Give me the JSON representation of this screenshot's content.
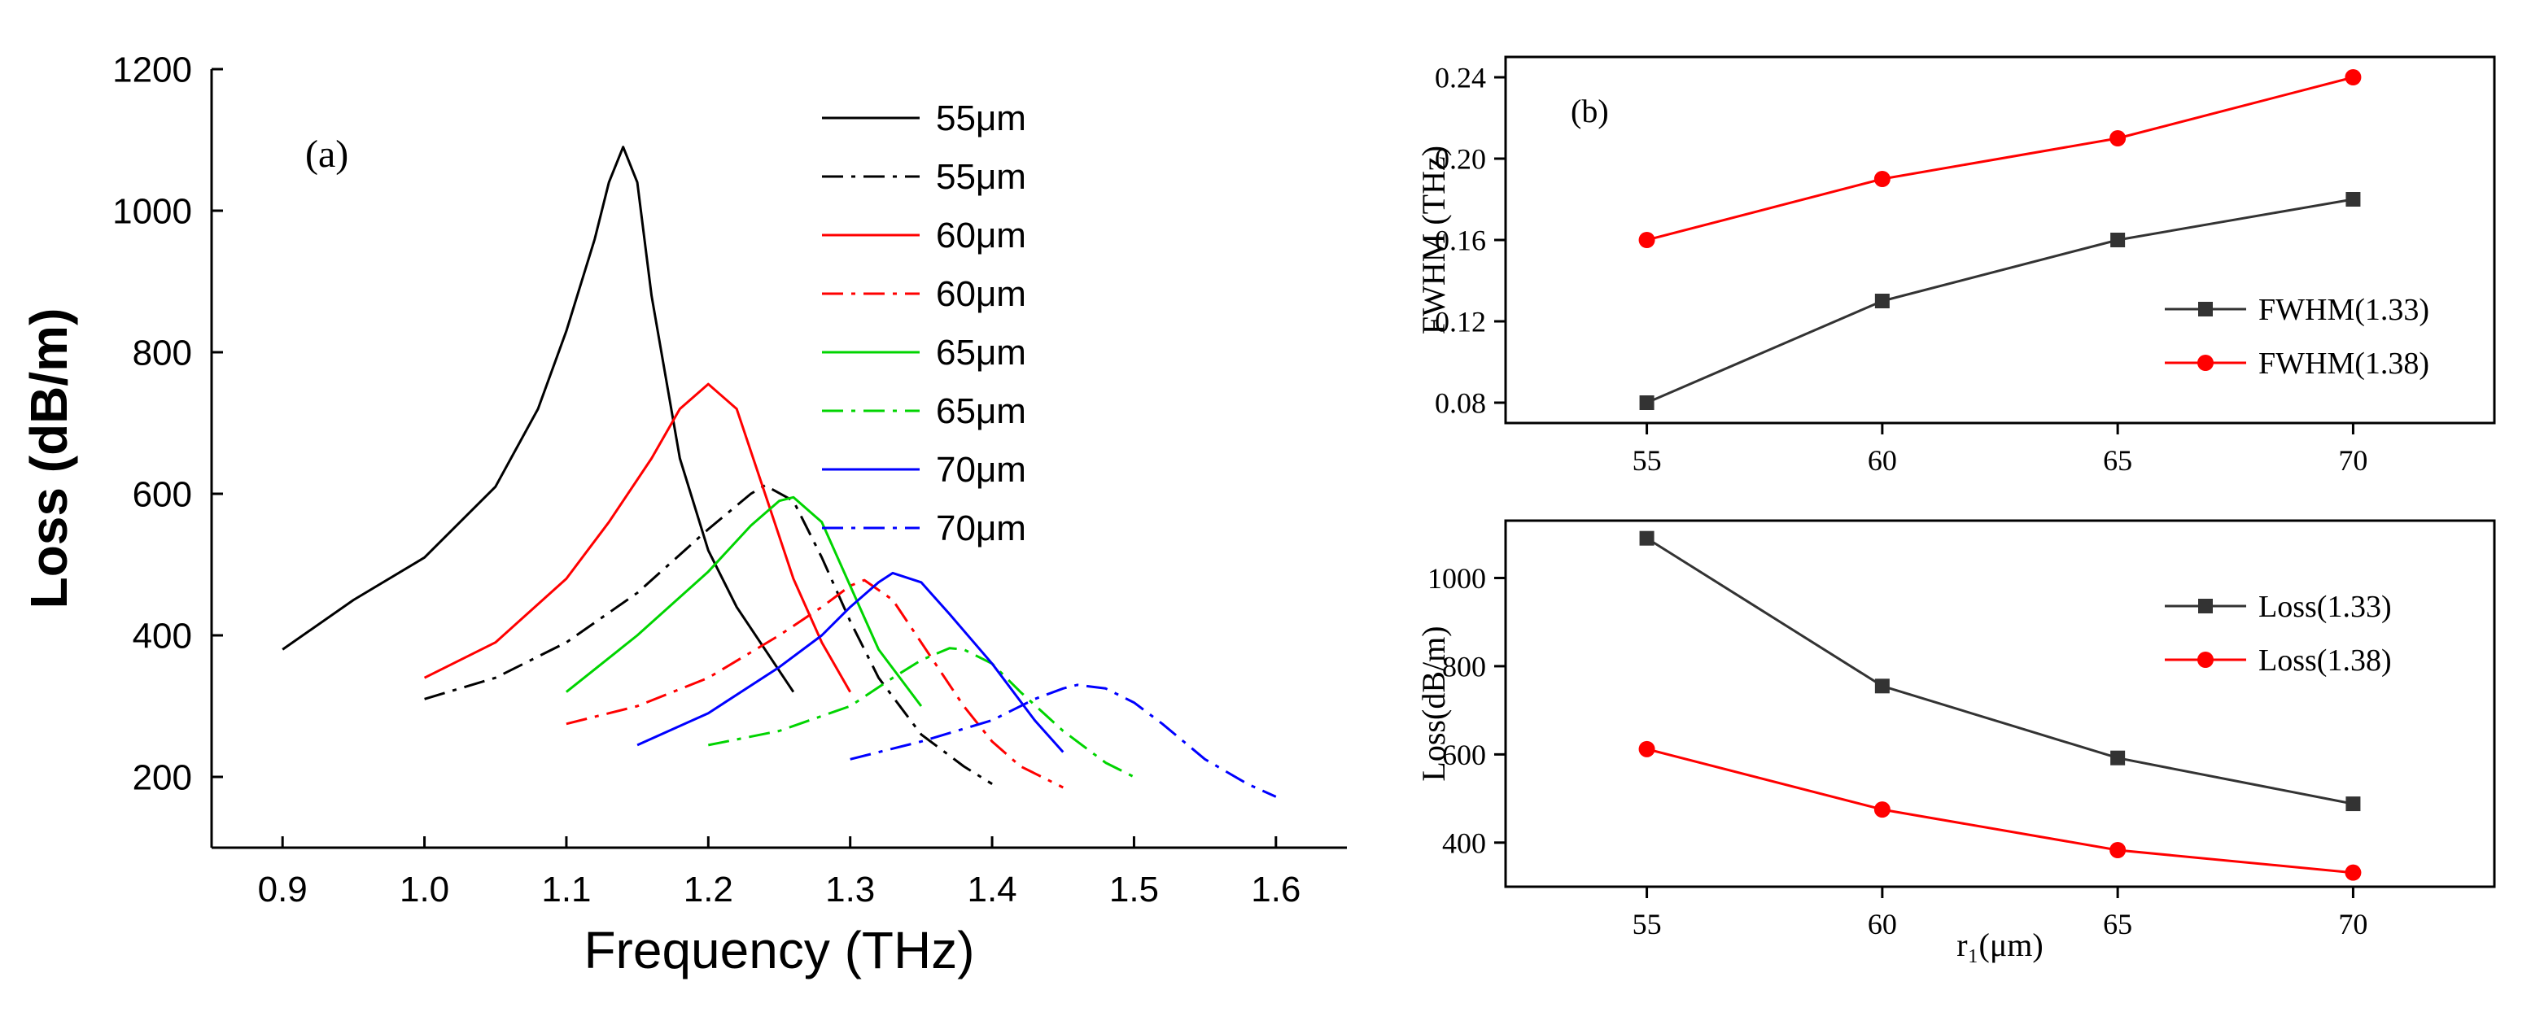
{
  "colors": {
    "black": "#000000",
    "red": "#ff0000",
    "green": "#00d400",
    "blue": "#0000ff",
    "gray": "#333333"
  },
  "chart_data": [
    {
      "id": "a",
      "type": "line",
      "panel_label": "(a)",
      "title": "",
      "xlabel": "Frequency (THz)",
      "ylabel": "Loss (dB/m)",
      "xlim": [
        0.85,
        1.65
      ],
      "ylim": [
        100,
        1200
      ],
      "xticks": [
        0.9,
        1.0,
        1.1,
        1.2,
        1.3,
        1.4,
        1.5,
        1.6
      ],
      "xtick_labels": [
        "0.9",
        "1.0",
        "1.1",
        "1.2",
        "1.3",
        "1.4",
        "1.5",
        "1.6"
      ],
      "yticks": [
        200,
        400,
        600,
        800,
        1000,
        1200
      ],
      "ytick_labels": [
        "200",
        "400",
        "600",
        "800",
        "1000",
        "1200"
      ],
      "legend_position": "top-right",
      "series": [
        {
          "name": "55μm",
          "color": "#000000",
          "dash": "solid",
          "x": [
            0.9,
            0.95,
            1.0,
            1.05,
            1.08,
            1.1,
            1.12,
            1.13,
            1.14,
            1.15,
            1.16,
            1.18,
            1.2,
            1.22,
            1.24,
            1.26
          ],
          "y": [
            380,
            450,
            510,
            610,
            720,
            830,
            960,
            1040,
            1090,
            1040,
            880,
            650,
            520,
            440,
            380,
            320
          ]
        },
        {
          "name": "55μm",
          "color": "#000000",
          "dash": "dashdot",
          "x": [
            1.0,
            1.05,
            1.1,
            1.15,
            1.2,
            1.23,
            1.24,
            1.26,
            1.28,
            1.3,
            1.32,
            1.35,
            1.38,
            1.4
          ],
          "y": [
            310,
            340,
            390,
            460,
            550,
            600,
            612,
            590,
            510,
            420,
            340,
            260,
            215,
            190
          ]
        },
        {
          "name": "60μm",
          "color": "#ff0000",
          "dash": "solid",
          "x": [
            1.0,
            1.05,
            1.1,
            1.13,
            1.16,
            1.18,
            1.2,
            1.22,
            1.24,
            1.26,
            1.28,
            1.3
          ],
          "y": [
            340,
            390,
            480,
            560,
            650,
            720,
            755,
            720,
            600,
            480,
            390,
            320
          ]
        },
        {
          "name": "60μm",
          "color": "#ff0000",
          "dash": "dashdot",
          "x": [
            1.1,
            1.15,
            1.2,
            1.25,
            1.28,
            1.3,
            1.31,
            1.33,
            1.35,
            1.38,
            1.4,
            1.42,
            1.45
          ],
          "y": [
            275,
            300,
            340,
            400,
            440,
            470,
            478,
            450,
            390,
            300,
            250,
            215,
            185
          ]
        },
        {
          "name": "65μm",
          "color": "#00d400",
          "dash": "solid",
          "x": [
            1.1,
            1.15,
            1.2,
            1.23,
            1.25,
            1.26,
            1.28,
            1.3,
            1.32,
            1.35
          ],
          "y": [
            320,
            400,
            490,
            555,
            590,
            595,
            560,
            470,
            380,
            300
          ]
        },
        {
          "name": "65μm",
          "color": "#00d400",
          "dash": "dashdot",
          "x": [
            1.2,
            1.25,
            1.3,
            1.33,
            1.35,
            1.37,
            1.38,
            1.4,
            1.42,
            1.45,
            1.48,
            1.5
          ],
          "y": [
            245,
            265,
            300,
            340,
            365,
            382,
            380,
            360,
            320,
            265,
            220,
            200
          ]
        },
        {
          "name": "70μm",
          "color": "#0000ff",
          "dash": "solid",
          "x": [
            1.15,
            1.2,
            1.25,
            1.28,
            1.3,
            1.32,
            1.33,
            1.35,
            1.37,
            1.4,
            1.43,
            1.45
          ],
          "y": [
            245,
            290,
            355,
            400,
            440,
            475,
            488,
            475,
            430,
            360,
            280,
            235
          ]
        },
        {
          "name": "70μm",
          "color": "#0000ff",
          "dash": "dashdot",
          "x": [
            1.3,
            1.35,
            1.4,
            1.43,
            1.45,
            1.46,
            1.48,
            1.5,
            1.52,
            1.55,
            1.58,
            1.6
          ],
          "y": [
            225,
            250,
            280,
            310,
            325,
            330,
            325,
            305,
            275,
            225,
            190,
            172
          ]
        }
      ]
    },
    {
      "id": "b_top",
      "type": "line",
      "panel_label": "(b)",
      "title": "",
      "xlabel": "",
      "ylabel": "FWHM (THz)",
      "xlim": [
        52,
        73
      ],
      "ylim": [
        0.07,
        0.25
      ],
      "xticks": [
        55,
        60,
        65,
        70
      ],
      "xtick_labels": [
        "55",
        "60",
        "65",
        "70"
      ],
      "yticks": [
        0.08,
        0.12,
        0.16,
        0.2,
        0.24
      ],
      "ytick_labels": [
        "0.08",
        "0.12",
        "0.16",
        "0.20",
        "0.24"
      ],
      "legend_position": "bottom-right",
      "series": [
        {
          "name": "FWHM(1.33)",
          "color": "#333333",
          "marker": "square",
          "x": [
            55,
            60,
            65,
            70
          ],
          "y": [
            0.08,
            0.13,
            0.16,
            0.18
          ]
        },
        {
          "name": "FWHM(1.38)",
          "color": "#ff0000",
          "marker": "circle",
          "x": [
            55,
            60,
            65,
            70
          ],
          "y": [
            0.16,
            0.19,
            0.21,
            0.24
          ]
        }
      ]
    },
    {
      "id": "b_bottom",
      "type": "line",
      "panel_label": "",
      "title": "",
      "xlabel": "r₁(μm)",
      "ylabel": "Loss(dB/m)",
      "xlim": [
        52,
        73
      ],
      "ylim": [
        300,
        1130
      ],
      "xticks": [
        55,
        60,
        65,
        70
      ],
      "xtick_labels": [
        "55",
        "60",
        "65",
        "70"
      ],
      "yticks": [
        400,
        600,
        800,
        1000
      ],
      "ytick_labels": [
        "400",
        "600",
        "800",
        "1000"
      ],
      "legend_position": "top-right",
      "series": [
        {
          "name": "Loss(1.33)",
          "color": "#333333",
          "marker": "square",
          "x": [
            55,
            60,
            65,
            70
          ],
          "y": [
            1090,
            755,
            592,
            488
          ]
        },
        {
          "name": "Loss(1.38)",
          "color": "#ff0000",
          "marker": "circle",
          "x": [
            55,
            60,
            65,
            70
          ],
          "y": [
            612,
            475,
            383,
            332
          ]
        }
      ]
    }
  ]
}
